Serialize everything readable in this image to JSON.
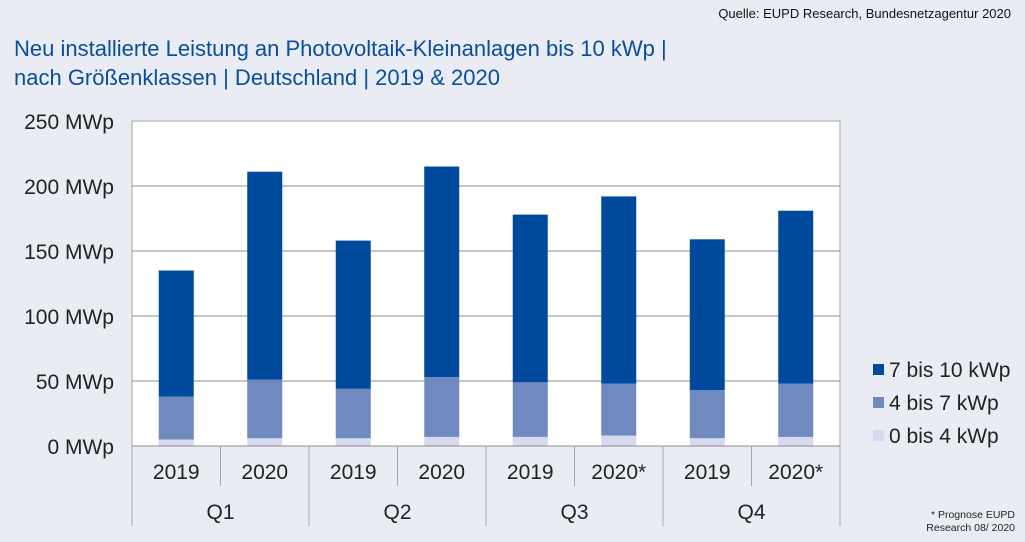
{
  "source": "Quelle: EUPD Research, Bundesnetzagentur 2020",
  "title_lines": [
    "Neu installierte Leistung an Photovoltaik-Kleinanlagen bis 10 kWp |",
    "nach Größenklassen | Deutschland | 2019 & 2020"
  ],
  "footnote_lines": [
    "* Prognose EUPD",
    "Research 08/ 2020"
  ],
  "chart_data": {
    "type": "bar",
    "stacked": true,
    "title": "Neu installierte Leistung an Photovoltaik-Kleinanlagen bis 10 kWp | nach Größenklassen | Deutschland | 2019 & 2020",
    "xlabel": "",
    "ylabel": "",
    "ylim": [
      0,
      250
    ],
    "yticks": [
      0,
      50,
      100,
      150,
      200,
      250
    ],
    "ytick_labels": [
      "0 MWp",
      "50 MWp",
      "100 MWp",
      "150 MWp",
      "200 MWp",
      "250 MWp"
    ],
    "grid": true,
    "groups": [
      "Q1",
      "Q2",
      "Q3",
      "Q4"
    ],
    "categories": [
      "2019",
      "2020",
      "2019",
      "2020",
      "2019",
      "2020*",
      "2019",
      "2020*"
    ],
    "category_group": [
      "Q1",
      "Q1",
      "Q2",
      "Q2",
      "Q3",
      "Q3",
      "Q4",
      "Q4"
    ],
    "legend_position": "right",
    "series": [
      {
        "name": "0 bis 4 kWp",
        "color": "#d5daee",
        "values": [
          5,
          6,
          6,
          7,
          7,
          8,
          6,
          7
        ]
      },
      {
        "name": "4 bis 7 kWp",
        "color": "#7089bf",
        "values": [
          33,
          45,
          38,
          46,
          42,
          40,
          37,
          41
        ]
      },
      {
        "name": "7 bis 10 kWp",
        "color": "#004a9e",
        "values": [
          97,
          160,
          114,
          162,
          129,
          144,
          116,
          133
        ]
      }
    ],
    "legend_order": [
      "7 bis 10 kWp",
      "4 bis 7 kWp",
      "0 bis 4 kWp"
    ]
  }
}
